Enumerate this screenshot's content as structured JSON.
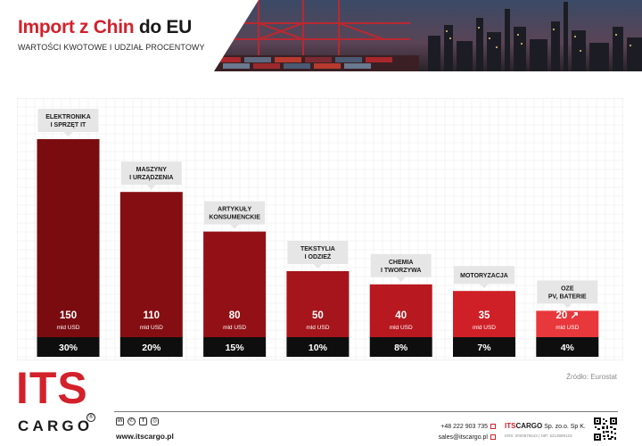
{
  "header": {
    "title_part1": "Import z Chin",
    "title_part2": "do EU",
    "subtitle": "WARTOŚCI KWOTOWE I UDZIAŁ PROCENTOWY"
  },
  "chart_data": {
    "type": "bar",
    "title": "Import z Chin do EU",
    "subtitle": "WARTOŚCI KWOTOWE I UDZIAŁ PROCENTOWY",
    "categories": [
      [
        "ELEKTRONIKA",
        "I SPRZĘT IT"
      ],
      [
        "MASZYNY",
        "I URZĄDZENIA"
      ],
      [
        "ARTYKUŁY",
        "KONSUMENCKIE"
      ],
      [
        "TEKSTYLIA",
        "I ODZIEŻ"
      ],
      [
        "CHEMIA",
        "I TWORZYWA"
      ],
      [
        "MOTORYZACJA"
      ],
      [
        "OZE",
        "PV, BATERIE"
      ]
    ],
    "values": [
      150,
      110,
      80,
      50,
      40,
      35,
      20
    ],
    "value_labels": [
      "150",
      "110",
      "80",
      "50",
      "40",
      "35",
      "20"
    ],
    "growth_marker": [
      "",
      "",
      "",
      "",
      "",
      "",
      "↗"
    ],
    "unit": "mld USD",
    "shares": [
      "30%",
      "20%",
      "15%",
      "10%",
      "8%",
      "7%",
      "4%"
    ],
    "ylim": [
      0,
      150
    ],
    "grid": true,
    "colors": [
      "#7a0c10",
      "#850e12",
      "#931116",
      "#a5151b",
      "#b81820",
      "#cf2027",
      "#e8383b"
    ],
    "share_bar_color": "#0e0e0e",
    "label_box_color": "#e6e6e6"
  },
  "source": "Źródło: Eurostat",
  "footer": {
    "logo_main": "ITS",
    "logo_sub": "CARGO",
    "logo_reg": "®",
    "social_icons": [
      "linkedin-icon",
      "whatsapp-icon",
      "facebook-icon",
      "instagram-icon"
    ],
    "website": "www.itscargo.pl",
    "phone": "+48 222 903 735",
    "email": "sales@itscargo.pl",
    "company_red": "ITS",
    "company_bold": "CARGO",
    "company_rest": "Sp. zo.o. Sp K.",
    "company_details": "KRS: 0000876543 | NIP: 5213899123"
  }
}
